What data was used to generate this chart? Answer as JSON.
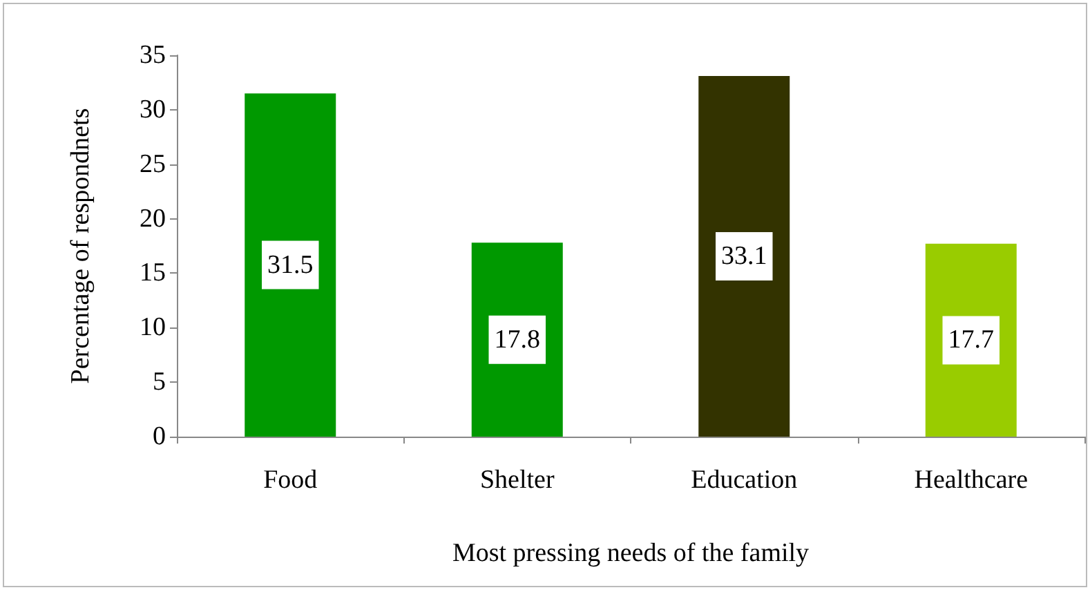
{
  "chart_data": {
    "type": "bar",
    "xlabel": "Most pressing needs of the family",
    "ylabel": "Percentage of respondnets",
    "categories": [
      "Food",
      "Shelter",
      "Education",
      "Healthcare"
    ],
    "values": [
      31.5,
      17.8,
      33.1,
      17.7
    ],
    "colors": [
      "#009900",
      "#009900",
      "#333300",
      "#99cc00"
    ],
    "ylim": [
      0,
      35
    ],
    "yticks": [
      0,
      5,
      10,
      15,
      20,
      25,
      30,
      35
    ],
    "grid": false,
    "data_labels": true
  }
}
